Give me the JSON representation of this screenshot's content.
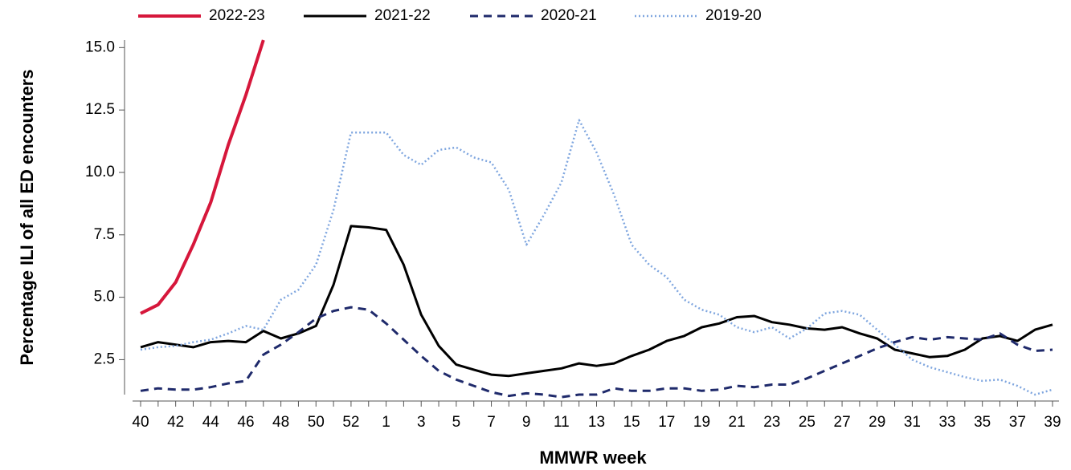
{
  "chart_data": {
    "type": "line",
    "xlabel": "MMWR week",
    "ylabel": "Percentage ILI of all ED encounters",
    "categories": [
      40,
      null,
      42,
      null,
      44,
      null,
      46,
      null,
      48,
      null,
      50,
      null,
      52,
      null,
      1,
      null,
      3,
      null,
      5,
      null,
      7,
      null,
      9,
      null,
      11,
      null,
      13,
      null,
      15,
      null,
      17,
      null,
      19,
      null,
      21,
      null,
      23,
      null,
      25,
      null,
      27,
      null,
      29,
      null,
      31,
      null,
      33,
      null,
      35,
      null,
      37,
      null,
      39
    ],
    "ylim": [
      1.1,
      15.3
    ],
    "yticks": [
      2.5,
      {
        "value": 5,
        "label": "5.0"
      },
      7.5,
      {
        "value": 10,
        "label": "10.0"
      },
      12.5,
      {
        "value": 15,
        "label": "15.0"
      }
    ],
    "legend": "top",
    "series": [
      {
        "name": "2022-23",
        "color": "#d6173b",
        "dash": "solid",
        "width": 4,
        "values": [
          4.35,
          4.7,
          5.6,
          7.1,
          8.8,
          11.1,
          13.1,
          15.3,
          null,
          null,
          null,
          null,
          null,
          null,
          null,
          null,
          null,
          null,
          null,
          null,
          null,
          null,
          null,
          null,
          null,
          null,
          null,
          null,
          null,
          null,
          null,
          null,
          null,
          null,
          null,
          null,
          null,
          null,
          null,
          null,
          null,
          null,
          null,
          null,
          null,
          null,
          null,
          null,
          null,
          null,
          null,
          null,
          null
        ]
      },
      {
        "name": "2021-22",
        "color": "#000000",
        "dash": "solid",
        "width": 3,
        "values": [
          3.0,
          3.2,
          3.1,
          3.0,
          3.2,
          3.25,
          3.2,
          3.65,
          3.35,
          3.55,
          3.85,
          5.5,
          7.85,
          7.8,
          7.7,
          6.3,
          4.3,
          3.05,
          2.3,
          2.1,
          1.9,
          1.85,
          1.95,
          2.05,
          2.15,
          2.35,
          2.25,
          2.35,
          2.65,
          2.9,
          3.25,
          3.45,
          3.8,
          3.95,
          4.2,
          4.25,
          4.0,
          3.9,
          3.75,
          3.7,
          3.8,
          3.55,
          3.35,
          2.9,
          2.75,
          2.6,
          2.65,
          2.9,
          3.35,
          3.45,
          3.25,
          3.7,
          3.9
        ]
      },
      {
        "name": "2020-21",
        "color": "#1f2a6b",
        "dash": "dashed",
        "width": 3,
        "values": [
          1.25,
          1.35,
          1.3,
          1.3,
          1.4,
          1.55,
          1.65,
          2.7,
          3.1,
          3.6,
          4.15,
          4.45,
          4.6,
          4.5,
          3.95,
          3.3,
          2.65,
          2.05,
          1.7,
          1.45,
          1.2,
          1.05,
          1.15,
          1.1,
          1.0,
          1.1,
          1.1,
          1.35,
          1.25,
          1.25,
          1.35,
          1.35,
          1.25,
          1.3,
          1.45,
          1.4,
          1.5,
          1.5,
          1.75,
          2.05,
          2.35,
          2.65,
          2.95,
          3.2,
          3.4,
          3.3,
          3.4,
          3.35,
          3.3,
          3.55,
          3.1,
          2.85,
          2.9
        ]
      },
      {
        "name": "2019-20",
        "color": "#7fa6df",
        "dash": "dotted",
        "width": 2.5,
        "values": [
          2.9,
          3.0,
          3.05,
          3.2,
          3.3,
          3.55,
          3.85,
          3.7,
          4.9,
          5.3,
          6.3,
          8.5,
          11.6,
          11.6,
          11.6,
          10.7,
          10.3,
          10.9,
          11.0,
          10.6,
          10.4,
          9.3,
          7.1,
          8.3,
          9.6,
          12.1,
          10.8,
          9.1,
          7.1,
          6.3,
          5.8,
          4.9,
          4.5,
          4.3,
          3.8,
          3.6,
          3.8,
          3.35,
          3.75,
          4.35,
          4.45,
          4.3,
          3.7,
          3.1,
          2.5,
          2.2,
          2.0,
          1.8,
          1.65,
          1.7,
          1.45,
          1.1,
          1.3
        ]
      }
    ]
  }
}
